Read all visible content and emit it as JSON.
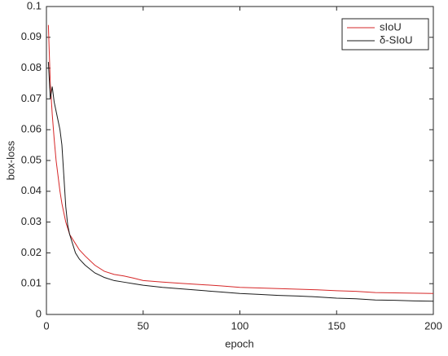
{
  "chart_data": {
    "type": "line",
    "x_label": "epoch",
    "y_label": "box-loss",
    "x": [
      1,
      2,
      3,
      4,
      5,
      6,
      7,
      8,
      9,
      10,
      11,
      12,
      13,
      15,
      17,
      20,
      25,
      30,
      35,
      40,
      45,
      50,
      60,
      70,
      80,
      90,
      100,
      110,
      120,
      130,
      140,
      150,
      160,
      170,
      180,
      190,
      200
    ],
    "series": [
      {
        "name": "sIoU",
        "color": "#d62728",
        "values": [
          0.094,
          0.075,
          0.065,
          0.057,
          0.05,
          0.045,
          0.04,
          0.036,
          0.033,
          0.03,
          0.028,
          0.026,
          0.025,
          0.023,
          0.021,
          0.019,
          0.016,
          0.014,
          0.013,
          0.0125,
          0.0118,
          0.011,
          0.0105,
          0.0101,
          0.0097,
          0.0093,
          0.0088,
          0.0086,
          0.0084,
          0.0082,
          0.008,
          0.0077,
          0.0075,
          0.0071,
          0.007,
          0.0069,
          0.0068
        ]
      },
      {
        "name": "δ-SIoU",
        "color": "#1a1a1a",
        "values": [
          0.082,
          0.07,
          0.074,
          0.069,
          0.066,
          0.063,
          0.06,
          0.055,
          0.045,
          0.035,
          0.029,
          0.026,
          0.024,
          0.02,
          0.018,
          0.016,
          0.0135,
          0.012,
          0.011,
          0.0105,
          0.01,
          0.0095,
          0.0088,
          0.0083,
          0.0078,
          0.0073,
          0.0068,
          0.0065,
          0.0062,
          0.006,
          0.0057,
          0.0053,
          0.0051,
          0.0047,
          0.0046,
          0.0044,
          0.0043
        ]
      }
    ],
    "xlim": [
      0,
      200
    ],
    "xticks": [
      0,
      50,
      100,
      150,
      200
    ],
    "ylim": [
      0,
      0.1
    ],
    "yticks": [
      0,
      0.01,
      0.02,
      0.03,
      0.04,
      0.05,
      0.06,
      0.07,
      0.08,
      0.09,
      0.1
    ],
    "legend": "upper-right"
  }
}
